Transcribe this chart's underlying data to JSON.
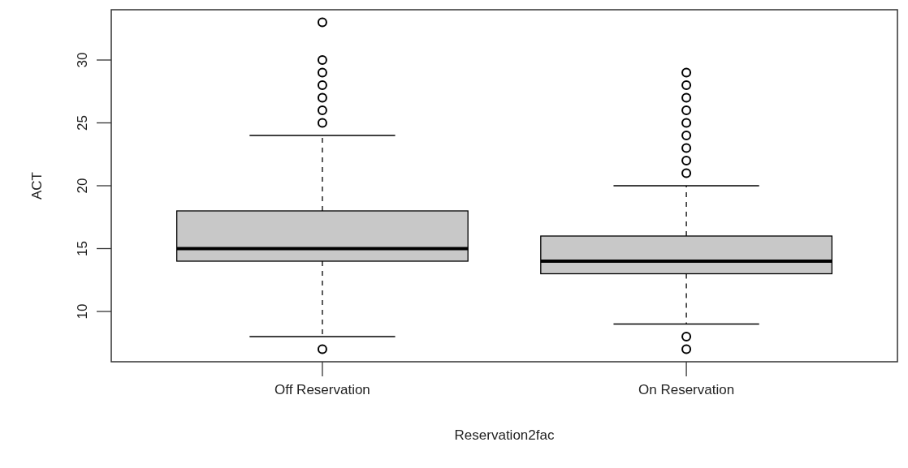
{
  "chart_data": {
    "type": "box",
    "xlabel": "Reservation2fac",
    "ylabel": "ACT",
    "categories": [
      "Off Reservation",
      "On Reservation"
    ],
    "color": "#c8c8c8",
    "boxes": [
      {
        "low": 8,
        "q1": 14,
        "median": 15,
        "q3": 18,
        "high": 24,
        "outliers": [
          7,
          25,
          26,
          27,
          28,
          29,
          30,
          33
        ]
      },
      {
        "low": 9,
        "q1": 13,
        "median": 14,
        "q3": 16,
        "high": 20,
        "outliers": [
          7,
          8,
          21,
          22,
          23,
          24,
          25,
          26,
          27,
          28,
          29
        ]
      }
    ],
    "ylim": [
      6,
      34
    ],
    "yticks": [
      10,
      15,
      20,
      25,
      30
    ],
    "grid": false
  }
}
